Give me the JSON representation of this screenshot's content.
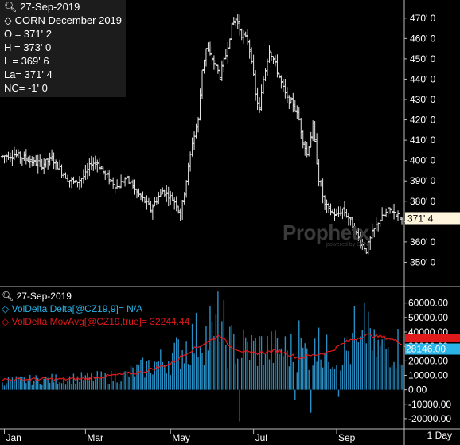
{
  "price_panel": {
    "date": "27-Sep-2019",
    "contract": "CORN December 2019",
    "open": "O = 371' 2",
    "high": "H = 373' 0",
    "low": "L = 369' 6",
    "last": "La= 371' 4",
    "net_change": "NC= -1' 0",
    "last_price_tag": "371' 4"
  },
  "volume_panel": {
    "date": "27-Sep-2019",
    "series1_label": "VolDelta Delta[@CZ19,9]= N/A",
    "series2_label": "VolDelta MovAvg[@CZ19,true]= 32244.44",
    "last_value_tag": "28146.00"
  },
  "watermark": {
    "brand": "Prophetx",
    "tagline": "powered by DTN"
  },
  "timeframe": "1 Day",
  "colors": {
    "background": "#000000",
    "bars": "#e6e6e6",
    "volume": "#2a8fc4",
    "ma_line": "#e01a1a",
    "price_tag": "#fff4dc",
    "volume_tag": "#2ab4e8",
    "ma_tag": "#e01a1a"
  },
  "chart_data": [
    {
      "type": "ohlc",
      "title": "CORN December 2019",
      "ylim": [
        340,
        475
      ],
      "yticks": [
        350,
        360,
        370,
        380,
        390,
        400,
        410,
        420,
        430,
        440,
        450,
        460,
        470
      ],
      "ytick_labels": [
        "350' 0",
        "360' 0",
        "370' 0",
        "380' 0",
        "390' 0",
        "400' 0",
        "410' 0",
        "420' 0",
        "430' 0",
        "440' 0",
        "450' 0",
        "460' 0",
        "470' 0"
      ],
      "xlabels": [
        "Jan",
        "Mar",
        "May",
        "Jul",
        "Sep"
      ],
      "xlabel_positions": [
        1,
        42,
        85,
        127,
        169
      ],
      "n_bars": 186,
      "anchors": [
        [
          0,
          402
        ],
        [
          6,
          403
        ],
        [
          12,
          401
        ],
        [
          16,
          399
        ],
        [
          20,
          398
        ],
        [
          25,
          401
        ],
        [
          29,
          396
        ],
        [
          33,
          391
        ],
        [
          37,
          389
        ],
        [
          42,
          393
        ],
        [
          45,
          399
        ],
        [
          48,
          399
        ],
        [
          52,
          393
        ],
        [
          55,
          390
        ],
        [
          58,
          387
        ],
        [
          62,
          391
        ],
        [
          65,
          389
        ],
        [
          68,
          384
        ],
        [
          72,
          380
        ],
        [
          75,
          376
        ],
        [
          78,
          381
        ],
        [
          81,
          385
        ],
        [
          84,
          383
        ],
        [
          88,
          379
        ],
        [
          90,
          373
        ],
        [
          92,
          385
        ],
        [
          94,
          396
        ],
        [
          96,
          409
        ],
        [
          99,
          420
        ],
        [
          101,
          445
        ],
        [
          103,
          455
        ],
        [
          106,
          450
        ],
        [
          110,
          442
        ],
        [
          113,
          452
        ],
        [
          116,
          466
        ],
        [
          118,
          470
        ],
        [
          121,
          462
        ],
        [
          124,
          459
        ],
        [
          126,
          450
        ],
        [
          128,
          432
        ],
        [
          130,
          425
        ],
        [
          132,
          440
        ],
        [
          135,
          455
        ],
        [
          138,
          447
        ],
        [
          141,
          438
        ],
        [
          144,
          430
        ],
        [
          147,
          428
        ],
        [
          150,
          420
        ],
        [
          152,
          410
        ],
        [
          154,
          403
        ],
        [
          157,
          417
        ],
        [
          160,
          391
        ],
        [
          163,
          378
        ],
        [
          166,
          375
        ],
        [
          169,
          373
        ],
        [
          172,
          376
        ],
        [
          175,
          372
        ],
        [
          178,
          366
        ],
        [
          181,
          360
        ],
        [
          184,
          356
        ],
        [
          187,
          364
        ],
        [
          190,
          370
        ],
        [
          193,
          373
        ],
        [
          196,
          376
        ],
        [
          199,
          374
        ],
        [
          202,
          371
        ]
      ],
      "volatility": 4
    },
    {
      "type": "bar",
      "series": [
        {
          "name": "VolDelta Delta[@CZ19,9]",
          "level_anchors": [
            [
              0,
              6000
            ],
            [
              60,
              9000
            ],
            [
              85,
              22000
            ],
            [
              100,
              38000
            ],
            [
              118,
              30000
            ],
            [
              135,
              28000
            ],
            [
              165,
              25000
            ],
            [
              202,
              30000
            ]
          ]
        },
        {
          "name": "VolDelta MovAvg[@CZ19,true]",
          "level_anchors": [
            [
              0,
              7000
            ],
            [
              40,
              7500
            ],
            [
              70,
              12000
            ],
            [
              85,
              18000
            ],
            [
              95,
              27000
            ],
            [
              105,
              34000
            ],
            [
              110,
              38000
            ],
            [
              115,
              30000
            ],
            [
              125,
              25000
            ],
            [
              140,
              27000
            ],
            [
              150,
              22000
            ],
            [
              165,
              26000
            ],
            [
              175,
              34000
            ],
            [
              185,
              38000
            ],
            [
              195,
              36000
            ],
            [
              202,
              32244
            ]
          ]
        }
      ],
      "ylim": [
        -25000,
        67000
      ],
      "yticks": [
        -20000,
        -10000,
        0,
        10000,
        20000,
        30000,
        40000,
        50000,
        60000
      ],
      "ytick_labels": [
        "-20000.00",
        "-10000.00",
        "0.00",
        "10000.00",
        "20000.00",
        "30000.00",
        "40000.00",
        "50000.00",
        "60000.00"
      ],
      "spikes": [
        [
          105,
          58000
        ],
        [
          109,
          68000
        ],
        [
          112,
          62000
        ],
        [
          178,
          58000
        ],
        [
          183,
          60000
        ],
        [
          185,
          54000
        ],
        [
          150,
          48000
        ],
        [
          160,
          43000
        ]
      ],
      "negatives": [
        [
          120,
          -22000
        ],
        [
          156,
          -16000
        ],
        [
          148,
          -7000
        ],
        [
          170,
          -5000
        ]
      ]
    }
  ]
}
